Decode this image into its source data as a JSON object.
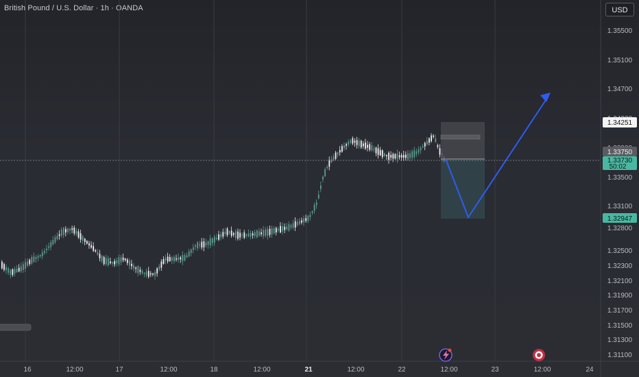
{
  "title": "British Pound / U.S. Dollar · 1h · OANDA",
  "currency_label": "USD",
  "colors": {
    "background": "#26282e",
    "grid": "#3a3c43",
    "up_candle": "#5e9c91",
    "down_candle": "#f2f2f2",
    "projection_line": "#2f5cf0",
    "target_box": "#36565a",
    "stop_box": "#45474d",
    "price_tag_green": "#49b8a2"
  },
  "price_axis": {
    "ticks": [
      "1.35500",
      "1.35100",
      "1.34700",
      "1.34300",
      "1.33900",
      "1.33500",
      "1.33100",
      "1.32800",
      "1.32500",
      "1.32300",
      "1.32100",
      "1.31900",
      "1.31700",
      "1.31500",
      "1.31300",
      "1.31100"
    ],
    "current_price": "1.33730",
    "countdown": "50:02",
    "stop_label": "1.34251",
    "entry_label": "1.33750",
    "target_label": "1.32947"
  },
  "time_axis": {
    "labels": [
      {
        "text": "16",
        "bold": false
      },
      {
        "text": "12:00",
        "bold": false
      },
      {
        "text": "17",
        "bold": false
      },
      {
        "text": "12:00",
        "bold": false
      },
      {
        "text": "18",
        "bold": false
      },
      {
        "text": "12:00",
        "bold": false
      },
      {
        "text": "21",
        "bold": true
      },
      {
        "text": "12:00",
        "bold": false
      },
      {
        "text": "22",
        "bold": false
      },
      {
        "text": "12:00",
        "bold": false
      },
      {
        "text": "23",
        "bold": false
      },
      {
        "text": "12:00",
        "bold": false
      },
      {
        "text": "24",
        "bold": false
      }
    ]
  },
  "event_icons": [
    "lightning-event-icon",
    "flag-event-icon"
  ]
}
